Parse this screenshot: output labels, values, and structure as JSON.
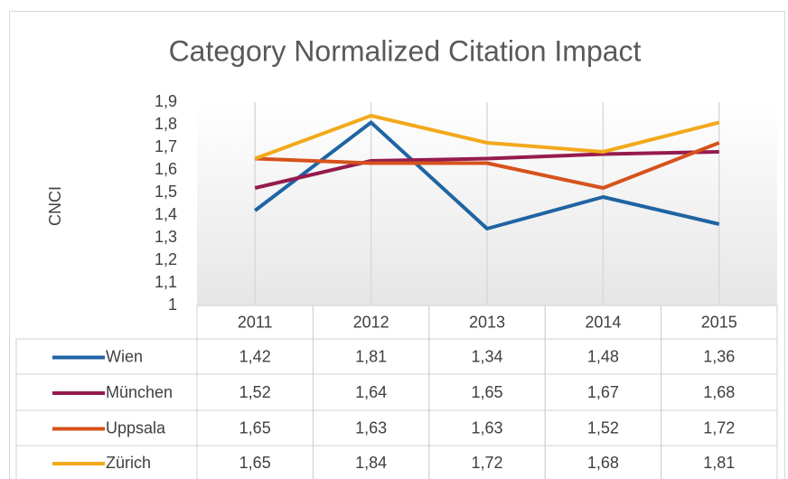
{
  "chart_data": {
    "type": "line",
    "title": "Category Normalized Citation Impact",
    "ylabel": "CNCI",
    "categories": [
      "2011",
      "2012",
      "2013",
      "2014",
      "2015"
    ],
    "series": [
      {
        "name": "Wien",
        "color": "#1f64a3",
        "values": [
          1.42,
          1.81,
          1.34,
          1.48,
          1.36
        ],
        "value_labels": [
          "1,42",
          "1,81",
          "1,34",
          "1,48",
          "1,36"
        ]
      },
      {
        "name": "München",
        "color": "#951b4f",
        "values": [
          1.52,
          1.64,
          1.65,
          1.67,
          1.68
        ],
        "value_labels": [
          "1,52",
          "1,64",
          "1,65",
          "1,67",
          "1,68"
        ]
      },
      {
        "name": "Uppsala",
        "color": "#d6521c",
        "values": [
          1.65,
          1.63,
          1.63,
          1.52,
          1.72
        ],
        "value_labels": [
          "1,65",
          "1,63",
          "1,63",
          "1,52",
          "1,72"
        ]
      },
      {
        "name": "Zürich",
        "color": "#f2a91b",
        "values": [
          1.65,
          1.84,
          1.72,
          1.68,
          1.81
        ],
        "value_labels": [
          "1,65",
          "1,84",
          "1,72",
          "1,68",
          "1,81"
        ]
      }
    ],
    "ylim": [
      1,
      1.9
    ],
    "yticks": [
      1,
      {
        "value": 1.1,
        "label": "1,1"
      },
      {
        "value": 1.2,
        "label": "1,2"
      },
      {
        "value": 1.3,
        "label": "1,3"
      },
      {
        "value": 1.4,
        "label": "1,4"
      },
      {
        "value": 1.5,
        "label": "1,5"
      },
      {
        "value": 1.6,
        "label": "1,6"
      },
      {
        "value": 1.7,
        "label": "1,7"
      },
      {
        "value": 1.8,
        "label": "1,8"
      },
      {
        "value": 1.9,
        "label": "1,9"
      }
    ]
  }
}
